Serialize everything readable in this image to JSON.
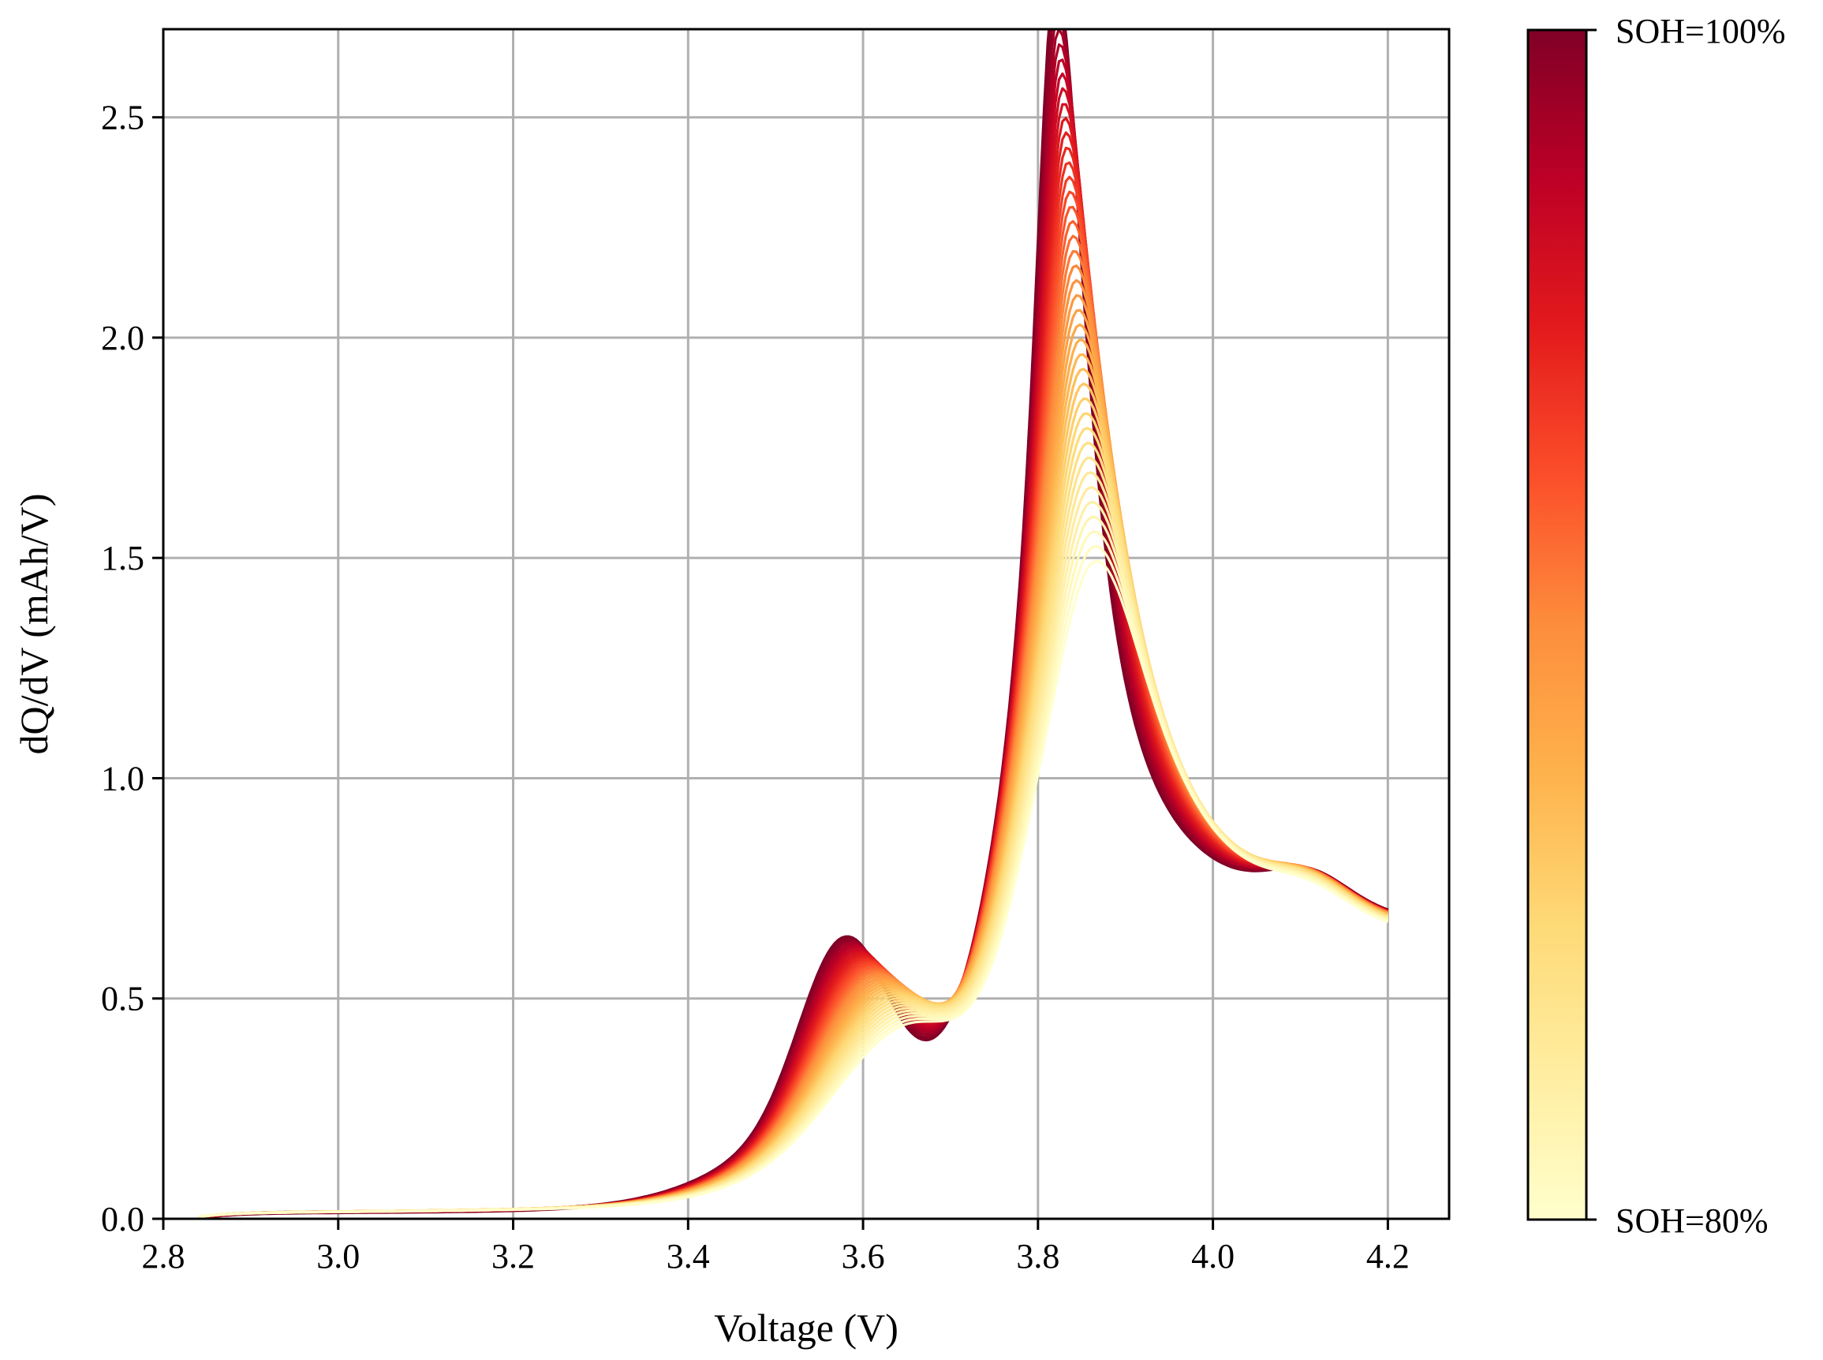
{
  "chart_data": {
    "type": "line",
    "title": "",
    "xlabel": "Voltage (V)",
    "ylabel": "dQ/dV (mAh/V)",
    "xlim": [
      2.8,
      4.27
    ],
    "ylim": [
      0.0,
      2.7
    ],
    "xticks": [
      "2.8",
      "3.0",
      "3.2",
      "3.4",
      "3.6",
      "3.8",
      "4.0",
      "4.2"
    ],
    "yticks": [
      "0.0",
      "0.5",
      "1.0",
      "1.5",
      "2.0",
      "2.5"
    ],
    "grid": true,
    "colorbar": {
      "colormap": "YlOrRd",
      "top_label": "SOH=100%",
      "bottom_label": "SOH=80%",
      "stops": [
        "#800026",
        "#bd0026",
        "#e31a1c",
        "#fc4e2a",
        "#fd8d3c",
        "#feb24c",
        "#fed976",
        "#ffeda0",
        "#ffffcc"
      ]
    },
    "series_family": {
      "count": 40,
      "soh_range": [
        100,
        80
      ],
      "x_range": [
        2.84,
        4.2
      ],
      "fresh": {
        "peak1_voltage": 3.578,
        "peak1_height": 0.675,
        "peak2_voltage": 3.82,
        "peak2_height": 2.565,
        "value_at_4_2": 0.625
      },
      "aged": {
        "peak1_voltage": 3.64,
        "peak1_height": 0.46,
        "peak2_voltage": 3.865,
        "peak2_height": 1.3,
        "value_at_4_2": 0.6
      }
    }
  }
}
